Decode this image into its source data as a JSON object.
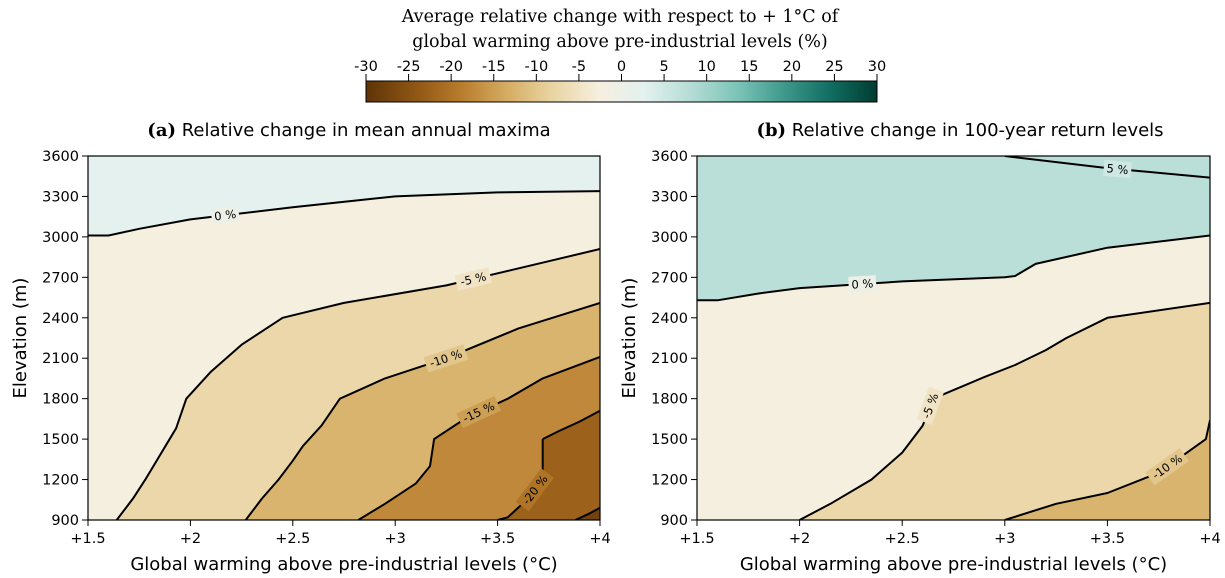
{
  "colorbar": {
    "title_line1": "Average relative change with respect to + 1°C of",
    "title_line2": "global warming above pre-industrial levels (%)",
    "ticks": [
      "-30",
      "-25",
      "-20",
      "-15",
      "-10",
      "-5",
      "0",
      "5",
      "10",
      "15",
      "20",
      "25",
      "30"
    ],
    "range": [
      -30,
      30
    ],
    "colors": [
      "#5e3407",
      "#8c5413",
      "#b67a2a",
      "#d4ab60",
      "#e9d4a2",
      "#f6efdf",
      "#e3f1ef",
      "#b4dcd5",
      "#7cc4b8",
      "#3e998b",
      "#116d61",
      "#003c30"
    ]
  },
  "chart_data": [
    {
      "type": "contour",
      "panel": "(a)",
      "title": "Relative change in mean annual maxima",
      "xlabel": "Global warming above pre-industrial levels (°C)",
      "ylabel": "Elevation (m)",
      "xlim": [
        1.5,
        4.0
      ],
      "ylim": [
        900,
        3600
      ],
      "xticks": [
        "+1.5",
        "+2",
        "+2.5",
        "+3",
        "+3.5",
        "+4"
      ],
      "yticks": [
        "900",
        "1200",
        "1500",
        "1800",
        "2100",
        "2400",
        "2700",
        "3000",
        "3300",
        "3600"
      ],
      "contour_levels": [
        {
          "level": 0,
          "label": "0 %",
          "points": [
            [
              1.5,
              3010
            ],
            [
              1.6,
              3010
            ],
            [
              1.75,
              3060
            ],
            [
              2.0,
              3130
            ],
            [
              2.5,
              3220
            ],
            [
              3.0,
              3300
            ],
            [
              3.5,
              3330
            ],
            [
              4.0,
              3340
            ]
          ]
        },
        {
          "level": -5,
          "label": "-5 %",
          "points": [
            [
              1.64,
              900
            ],
            [
              1.72,
              1060
            ],
            [
              1.78,
              1200
            ],
            [
              1.93,
              1580
            ],
            [
              1.98,
              1800
            ],
            [
              2.1,
              2000
            ],
            [
              2.25,
              2200
            ],
            [
              2.45,
              2400
            ],
            [
              2.75,
              2510
            ],
            [
              3.25,
              2640
            ],
            [
              3.75,
              2820
            ],
            [
              4.0,
              2910
            ]
          ]
        },
        {
          "level": -10,
          "label": "-10 %",
          "points": [
            [
              2.27,
              900
            ],
            [
              2.35,
              1060
            ],
            [
              2.43,
              1200
            ],
            [
              2.5,
              1340
            ],
            [
              2.55,
              1450
            ],
            [
              2.64,
              1600
            ],
            [
              2.73,
              1800
            ],
            [
              2.95,
              1950
            ],
            [
              3.25,
              2100
            ],
            [
              3.6,
              2320
            ],
            [
              4.0,
              2510
            ]
          ]
        },
        {
          "level": -15,
          "label": "-15 %",
          "points": [
            [
              2.82,
              900
            ],
            [
              2.95,
              1020
            ],
            [
              3.1,
              1170
            ],
            [
              3.17,
              1300
            ],
            [
              3.19,
              1500
            ],
            [
              3.35,
              1660
            ],
            [
              3.55,
              1800
            ],
            [
              3.72,
              1950
            ],
            [
              4.0,
              2110
            ]
          ]
        },
        {
          "level": -20,
          "label": "-20 %",
          "points": [
            [
              3.72,
              1500
            ],
            [
              3.72,
              1400
            ],
            [
              3.72,
              1300
            ],
            [
              3.72,
              1200
            ],
            [
              3.65,
              1060
            ],
            [
              3.55,
              920
            ],
            [
              3.5,
              900
            ]
          ]
        },
        {
          "level": -20,
          "label": "",
          "points": [
            [
              3.72,
              1500
            ],
            [
              3.8,
              1560
            ],
            [
              3.9,
              1630
            ],
            [
              4.0,
              1710
            ]
          ]
        },
        {
          "level": -25,
          "label": "",
          "points": [
            [
              3.88,
              900
            ],
            [
              3.95,
              950
            ],
            [
              4.0,
              990
            ]
          ]
        }
      ],
      "annotations": [
        "0 %",
        "-5 %",
        "-10 %",
        "-15 %",
        "-20 %"
      ]
    },
    {
      "type": "contour",
      "panel": "(b)",
      "title": "Relative change in 100-year return levels",
      "xlabel": "Global warming above pre-industrial levels (°C)",
      "ylabel": "Elevation (m)",
      "xlim": [
        1.5,
        4.0
      ],
      "ylim": [
        900,
        3600
      ],
      "xticks": [
        "+1.5",
        "+2",
        "+2.5",
        "+3",
        "+3.5",
        "+4"
      ],
      "yticks": [
        "900",
        "1200",
        "1500",
        "1800",
        "2100",
        "2400",
        "2700",
        "3000",
        "3300",
        "3600"
      ],
      "contour_levels": [
        {
          "level": 5,
          "label": "5 %",
          "points": [
            [
              3.0,
              3600
            ],
            [
              3.5,
              3510
            ],
            [
              4.0,
              3440
            ]
          ]
        },
        {
          "level": 0,
          "label": "0 %",
          "points": [
            [
              1.5,
              2530
            ],
            [
              1.6,
              2530
            ],
            [
              1.8,
              2580
            ],
            [
              2.0,
              2620
            ],
            [
              2.5,
              2670
            ],
            [
              3.0,
              2700
            ],
            [
              3.05,
              2710
            ],
            [
              3.15,
              2800
            ],
            [
              3.5,
              2920
            ],
            [
              4.0,
              3010
            ]
          ]
        },
        {
          "level": -5,
          "label": "-5 %",
          "points": [
            [
              2.0,
              900
            ],
            [
              2.15,
              1020
            ],
            [
              2.35,
              1200
            ],
            [
              2.5,
              1400
            ],
            [
              2.6,
              1600
            ],
            [
              2.65,
              1800
            ],
            [
              2.9,
              1960
            ],
            [
              3.05,
              2050
            ],
            [
              3.2,
              2160
            ],
            [
              3.3,
              2250
            ],
            [
              3.5,
              2400
            ],
            [
              4.0,
              2510
            ]
          ]
        },
        {
          "level": -10,
          "label": "-10 %",
          "points": [
            [
              3.0,
              900
            ],
            [
              3.25,
              1020
            ],
            [
              3.5,
              1100
            ],
            [
              3.75,
              1250
            ],
            [
              3.98,
              1500
            ],
            [
              4.0,
              1640
            ]
          ]
        }
      ],
      "annotations": [
        "5 %",
        "0 %",
        "-5 %",
        "-10 %"
      ]
    }
  ]
}
